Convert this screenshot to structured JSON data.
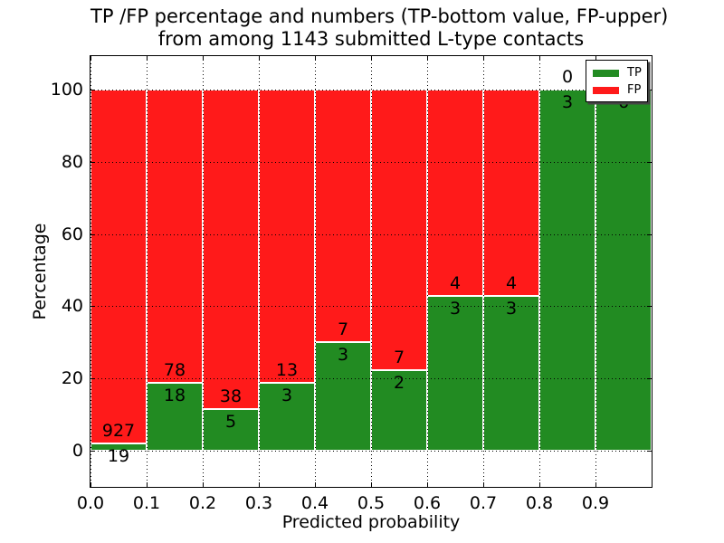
{
  "title": {
    "line1": "TP /FP percentage and numbers (TP-bottom value, FP-upper)",
    "line2": "from among 1143 submitted L-type contacts"
  },
  "chart_data": {
    "type": "bar",
    "stacked": true,
    "title": "TP /FP percentage and numbers (TP-bottom value, FP-upper) from among 1143 submitted L-type contacts",
    "xlabel": "Predicted probability",
    "ylabel": "Percentage",
    "xlim": [
      0.0,
      1.0
    ],
    "ylim": [
      -10,
      110
    ],
    "bar_width": 0.1,
    "grid": "dotted",
    "x_tick_labels": [
      "0.0",
      "0.1",
      "0.2",
      "0.3",
      "0.4",
      "0.5",
      "0.6",
      "0.7",
      "0.8",
      "0.9"
    ],
    "y_ticks": [
      0,
      20,
      40,
      60,
      80,
      100
    ],
    "categories": [
      "0.0-0.1",
      "0.1-0.2",
      "0.2-0.3",
      "0.3-0.4",
      "0.4-0.5",
      "0.5-0.6",
      "0.6-0.7",
      "0.7-0.8",
      "0.8-0.9",
      "0.9-1.0"
    ],
    "series": [
      {
        "name": "TP",
        "color": "#228b22",
        "counts": [
          19,
          18,
          5,
          3,
          3,
          2,
          3,
          3,
          3,
          6
        ],
        "percent": [
          2.01,
          18.75,
          11.63,
          18.75,
          30.0,
          22.22,
          42.86,
          42.86,
          100.0,
          100.0
        ]
      },
      {
        "name": "FP",
        "color": "#ff1a1a",
        "counts": [
          927,
          78,
          38,
          13,
          7,
          7,
          4,
          4,
          0,
          0
        ],
        "percent": [
          97.99,
          81.25,
          88.37,
          81.25,
          70.0,
          77.78,
          57.14,
          57.14,
          0.0,
          0.0
        ]
      }
    ],
    "legend": {
      "position": "upper right",
      "entries": [
        {
          "label": "TP",
          "color": "#228b22"
        },
        {
          "label": "FP",
          "color": "#ff1a1a"
        }
      ]
    },
    "annotation_note": "TP-bottom value, FP-upper",
    "total_contacts": "1143"
  }
}
